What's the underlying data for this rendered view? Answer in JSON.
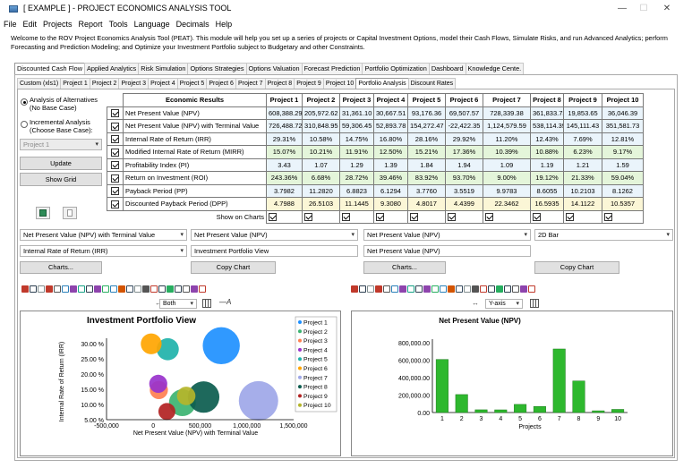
{
  "window": {
    "title": "[ EXAMPLE ] - PROJECT ECONOMICS ANALYSIS TOOL",
    "minimize": "—",
    "maximize": "☐",
    "close": "✕"
  },
  "menu": [
    "File",
    "Edit",
    "Projects",
    "Report",
    "Tools",
    "Language",
    "Decimals",
    "Help"
  ],
  "welcome": "Welcome to the ROV Project Economics Analysis Tool (PEAT). This module will help you set up a series of projects or Capital Investment Options, model their Cash Flows, Simulate Risks, and run Advanced Analytics; perform Forecasting and Prediction Modeling; and Optimize your Investment Portfolio subject to Budgetary and other Constraints.",
  "main_tabs": [
    "Discounted Cash Flow",
    "Applied Analytics",
    "Risk Simulation",
    "Options Strategies",
    "Options Valuation",
    "Forecast Prediction",
    "Portfolio Optimization",
    "Dashboard",
    "Knowledge Cente."
  ],
  "main_tab_active": 0,
  "sub_tabs": [
    "Custom (xls1)",
    "Project 1",
    "Project 2",
    "Project 3",
    "Project 4",
    "Project 5",
    "Project 6",
    "Project 7",
    "Project 8",
    "Project 9",
    "Project 10",
    "Portfolio Analysis",
    "Discount Rates"
  ],
  "sub_tab_active": 11,
  "left": {
    "radio1": "Analysis of Alternatives (No Base Case)",
    "radio2": "Incremental Analysis (Choose Base Case):",
    "base_case": "Project 1",
    "update": "Update",
    "show_grid": "Show Grid"
  },
  "table": {
    "header": [
      "Economic Results",
      "Project 1",
      "Project 2",
      "Project 3",
      "Project 4",
      "Project 5",
      "Project 6",
      "Project 7",
      "Project 8",
      "Project 9",
      "Project 10"
    ],
    "rows": [
      {
        "label": "Net Present Value (NPV)",
        "values": [
          "608,388.29",
          "205,972.62",
          "31,361.10",
          "30,667.51",
          "93,176.36",
          "69,507.57",
          "728,339.38",
          "361,833.73",
          "19,853.65",
          "36,046.39"
        ]
      },
      {
        "label": "Net Present Value (NPV) with Terminal Value",
        "values": [
          "726,488.72",
          "310,848.95",
          "59,306.45",
          "52,893.78",
          "154,272.47",
          "-22,422.35",
          "1,124,579.59",
          "538,114.39",
          "145,111.43",
          "351,581.73"
        ]
      },
      {
        "label": "Internal Rate of Return (IRR)",
        "values": [
          "29.31%",
          "10.58%",
          "14.75%",
          "16.80%",
          "28.16%",
          "29.92%",
          "11.20%",
          "12.43%",
          "7.69%",
          "12.81%"
        ]
      },
      {
        "label": "Modified Internal Rate of Return (MIRR)",
        "values": [
          "15.07%",
          "10.21%",
          "11.91%",
          "12.50%",
          "15.21%",
          "17.36%",
          "10.39%",
          "10.88%",
          "6.23%",
          "9.17%"
        ]
      },
      {
        "label": "Profitability Index (PI)",
        "values": [
          "3.43",
          "1.07",
          "1.29",
          "1.39",
          "1.84",
          "1.94",
          "1.09",
          "1.19",
          "1.21",
          "1.59"
        ]
      },
      {
        "label": "Return on Investment (ROI)",
        "values": [
          "243.36%",
          "6.68%",
          "28.72%",
          "39.46%",
          "83.92%",
          "93.70%",
          "9.00%",
          "19.12%",
          "21.33%",
          "59.04%"
        ]
      },
      {
        "label": "Payback Period (PP)",
        "values": [
          "3.7982",
          "11.2820",
          "6.8823",
          "6.1294",
          "3.7760",
          "3.5519",
          "9.9783",
          "8.6055",
          "10.2103",
          "8.1262"
        ]
      },
      {
        "label": "Discounted Payback Period (DPP)",
        "values": [
          "4.7988",
          "26.5103",
          "11.1445",
          "9.3080",
          "4.8017",
          "4.4399",
          "22.3462",
          "16.5935",
          "14.1122",
          "10.5357"
        ]
      }
    ],
    "show_on_charts": "Show on Charts",
    "colors": {
      "light": "#eaf4fb",
      "green": "#e4f5da",
      "yellow": "#fbf6d6"
    }
  },
  "controls": {
    "left_x": "Net Present Value (NPV) with Terminal Value",
    "left_y": "Internal Rate of Return (IRR)",
    "left_size": "Net Present Value (NPV)",
    "left_title": "Investment Portfolio View",
    "right_metric": "Net Present Value (NPV)",
    "right_title": "Net Present Value (NPV)",
    "right_type": "2D Bar",
    "charts_btn": "Charts...",
    "copy_btn": "Copy Chart",
    "both": "Both",
    "yaxis": "Y-axis"
  },
  "chart_data": [
    {
      "type": "scatter",
      "title": "Investment Portfolio View",
      "xlabel": "Net Present Value (NPV) with Terminal Value",
      "ylabel": "Internal Rate of Return (IRR)",
      "xlim": [
        -500000,
        1500000
      ],
      "ylim": [
        5,
        30
      ],
      "x_ticks": [
        "-500,000",
        "0",
        "500,000",
        "1,000,000",
        "1,500,000"
      ],
      "y_ticks": [
        "30.00 %",
        "25.00 %",
        "20.00 %",
        "15.00 %",
        "10.00 %",
        "5.00 %"
      ],
      "legend": [
        "Project 1",
        "Project 2",
        "Project 3",
        "Project 4",
        "Project 5",
        "Project 6",
        "Project 7",
        "Project 8",
        "Project 9",
        "Project 10"
      ],
      "legend_position": "right",
      "series": [
        {
          "name": "Project 1",
          "x": 726488.72,
          "y": 29.31,
          "size": 608388.29,
          "color": "#1e90ff"
        },
        {
          "name": "Project 2",
          "x": 310848.95,
          "y": 10.58,
          "size": 205972.62,
          "color": "#3cb371"
        },
        {
          "name": "Project 3",
          "x": 59306.45,
          "y": 14.75,
          "size": 31361.1,
          "color": "#ff7f50"
        },
        {
          "name": "Project 4",
          "x": 52893.78,
          "y": 16.8,
          "size": 30667.51,
          "color": "#9932cc"
        },
        {
          "name": "Project 5",
          "x": 154272.47,
          "y": 28.16,
          "size": 93176.36,
          "color": "#20b2aa"
        },
        {
          "name": "Project 6",
          "x": -22422.35,
          "y": 29.92,
          "size": 69507.57,
          "color": "#ffa500"
        },
        {
          "name": "Project 7",
          "x": 1124579.59,
          "y": 11.2,
          "size": 728339.38,
          "color": "#9ea7e8"
        },
        {
          "name": "Project 8",
          "x": 538114.39,
          "y": 12.43,
          "size": 361833.73,
          "color": "#0b5c4e"
        },
        {
          "name": "Project 9",
          "x": 145111.43,
          "y": 7.69,
          "size": 19853.65,
          "color": "#b22222"
        },
        {
          "name": "Project 10",
          "x": 351581.73,
          "y": 12.81,
          "size": 36046.39,
          "color": "#b5b52a"
        }
      ]
    },
    {
      "type": "bar",
      "title": "Net Present Value (NPV)",
      "xlabel": "Projects",
      "ylabel": "",
      "categories": [
        "1",
        "2",
        "3",
        "4",
        "5",
        "6",
        "7",
        "8",
        "9",
        "10"
      ],
      "values": [
        608388.29,
        205972.62,
        31361.1,
        30667.51,
        93176.36,
        69507.57,
        728339.38,
        361833.73,
        19853.65,
        36046.39
      ],
      "ylim": [
        0,
        800000
      ],
      "y_ticks": [
        "0.00",
        "200,000.00",
        "400,000.00",
        "600,000.00",
        "800,000.00"
      ],
      "color": "#2eb82e"
    }
  ]
}
